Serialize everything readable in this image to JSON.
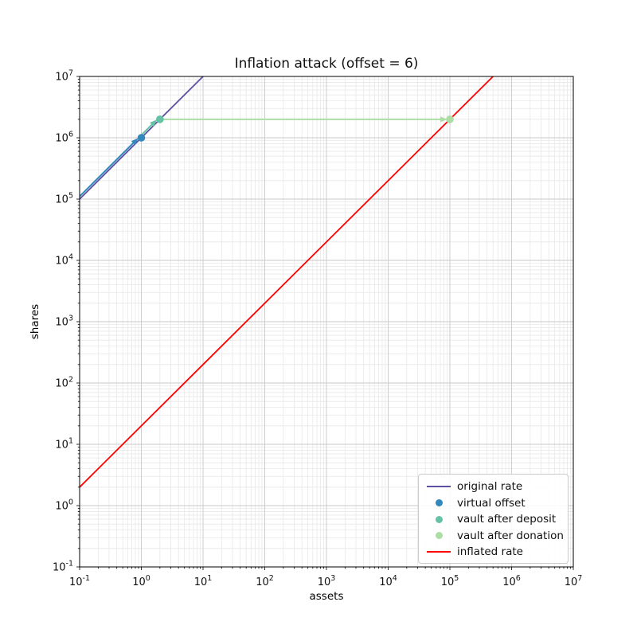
{
  "title": "Inflation attack (offset = 6)",
  "colors": {
    "original_rate": "#5e4fa2",
    "virtual_offset": "#3288bd",
    "vault_after_deposit": "#66c2a5",
    "vault_after_donation": "#abdda4",
    "inflated_rate": "#ff0000",
    "grid_major": "#c9c9c9",
    "grid_minor": "#e8e8e8",
    "spine": "#000000"
  },
  "chart_data": {
    "type": "line",
    "title": "Inflation attack (offset = 6)",
    "xlabel": "assets",
    "ylabel": "shares",
    "xscale": "log",
    "yscale": "log",
    "xlim": [
      0.1,
      10000000
    ],
    "ylim": [
      0.1,
      10000000
    ],
    "x_tick_exponents": [
      -1,
      0,
      1,
      2,
      3,
      4,
      5,
      6,
      7
    ],
    "y_tick_exponents": [
      -1,
      0,
      1,
      2,
      3,
      4,
      5,
      6,
      7
    ],
    "grid": true,
    "legend_position": "lower right",
    "series": [
      {
        "name": "original rate",
        "kind": "line",
        "color": "#5e4fa2",
        "points": [
          [
            0.1,
            100000
          ],
          [
            10,
            10000000
          ]
        ]
      },
      {
        "name": "virtual offset",
        "kind": "scatter",
        "color": "#3288bd",
        "points": [
          [
            1,
            1000000
          ]
        ]
      },
      {
        "name": "vault after deposit",
        "kind": "scatter",
        "color": "#66c2a5",
        "points": [
          [
            2,
            2000000
          ]
        ]
      },
      {
        "name": "vault after donation",
        "kind": "scatter",
        "color": "#abdda4",
        "points": [
          [
            100000,
            2000000
          ]
        ]
      },
      {
        "name": "inflated rate",
        "kind": "line",
        "color": "#ff0000",
        "points": [
          [
            0.1,
            2
          ],
          [
            500000,
            10000000
          ]
        ]
      }
    ],
    "arrows": [
      {
        "from": [
          0.1,
          100000
        ],
        "to": [
          1,
          1000000
        ],
        "color": "#3288bd",
        "offset": true
      },
      {
        "from": [
          1,
          1000000
        ],
        "to": [
          2,
          2000000
        ],
        "color": "#66c2a5",
        "offset": true
      },
      {
        "from": [
          2,
          2000000
        ],
        "to": [
          100000,
          2000000
        ],
        "color": "#abdda4",
        "offset": false
      }
    ]
  },
  "legend": {
    "entries": [
      {
        "label": "original rate",
        "swatch": "line",
        "color": "#5e4fa2"
      },
      {
        "label": "virtual offset",
        "swatch": "dot",
        "color": "#3288bd"
      },
      {
        "label": "vault after deposit",
        "swatch": "dot",
        "color": "#66c2a5"
      },
      {
        "label": "vault after donation",
        "swatch": "dot",
        "color": "#abdda4"
      },
      {
        "label": "inflated rate",
        "swatch": "line",
        "color": "#ff0000"
      }
    ]
  }
}
